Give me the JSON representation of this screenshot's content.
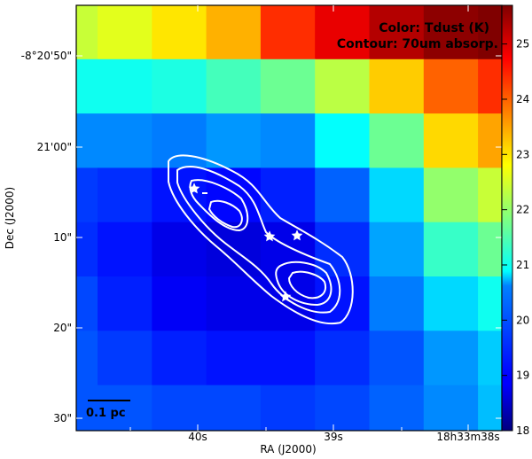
{
  "chart_data": {
    "type": "heatmap",
    "annotation_lines": [
      "Color: Tdust (K)",
      "Contour: 70um absorp."
    ],
    "xlabel": "RA (J2000)",
    "ylabel": "Dec (J2000)",
    "x_ticks": [
      "40s",
      "39s",
      "18h33m38s"
    ],
    "y_ticks": [
      "-8°20'50\"",
      "21'00\"",
      "10\"",
      "20\"",
      "30\""
    ],
    "colorbar": {
      "label_values": [
        18,
        19,
        20,
        21,
        22,
        23,
        24,
        25
      ],
      "range": [
        18,
        25.7
      ],
      "colormap": "jet"
    },
    "grid_values_K": [
      [
        22.4,
        22.6,
        23.0,
        23.4,
        24.4,
        24.9,
        25.3,
        25.6
      ],
      [
        21.0,
        21.0,
        21.1,
        21.4,
        21.7,
        22.3,
        23.2,
        24.0
      ],
      [
        20.0,
        20.0,
        19.9,
        20.1,
        20.0,
        20.9,
        21.7,
        23.1
      ],
      [
        19.4,
        19.3,
        19.1,
        19.0,
        19.2,
        19.7,
        20.6,
        22.0
      ],
      [
        19.3,
        19.1,
        18.8,
        18.7,
        18.8,
        19.3,
        20.2,
        21.3
      ],
      [
        19.5,
        19.2,
        18.9,
        18.8,
        18.8,
        19.1,
        19.9,
        20.6
      ],
      [
        19.6,
        19.4,
        19.2,
        19.1,
        19.1,
        19.3,
        19.6,
        20.1
      ],
      [
        19.6,
        19.6,
        19.5,
        19.5,
        19.4,
        19.5,
        19.7,
        20.0
      ]
    ],
    "scale_bar_label": "0.1 pc",
    "stars": 4,
    "contour_levels": 3
  }
}
